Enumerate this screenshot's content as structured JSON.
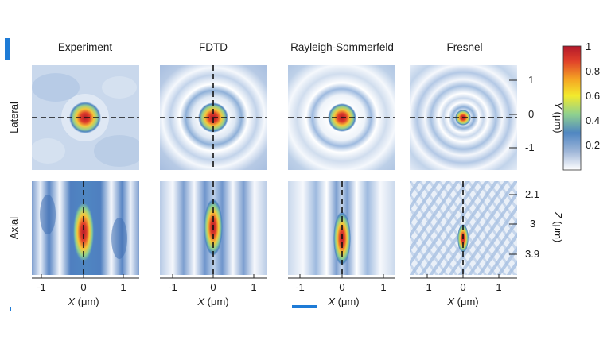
{
  "columns": [
    "Experiment",
    "FDTD",
    "Rayleigh-Sommerfeld",
    "Fresnel"
  ],
  "rows": [
    "Lateral",
    "Axial"
  ],
  "x_axis": {
    "label_var": "X",
    "label_unit": " (μm)",
    "ticks": [
      "-1",
      "0",
      "1"
    ]
  },
  "y_axis_lateral": {
    "label_var": "Y",
    "label_unit": " (μm)",
    "ticks": [
      "1",
      "0",
      "-1"
    ]
  },
  "z_axis_axial": {
    "label_var": "Z",
    "label_unit": " (μm)",
    "ticks": [
      "2.1",
      "3",
      "3.9"
    ]
  },
  "colorbar": {
    "ticks": [
      "1",
      "0.8",
      "0.6",
      "0.4",
      "0.2"
    ],
    "stops": [
      "#b2182b",
      "#e34a33",
      "#f7c948",
      "#f3f000",
      "#8fd18f",
      "#4a78b5",
      "#9fb6d8",
      "#ffffff"
    ]
  },
  "accent": {
    "bar_color": "#1e7bd6"
  }
}
